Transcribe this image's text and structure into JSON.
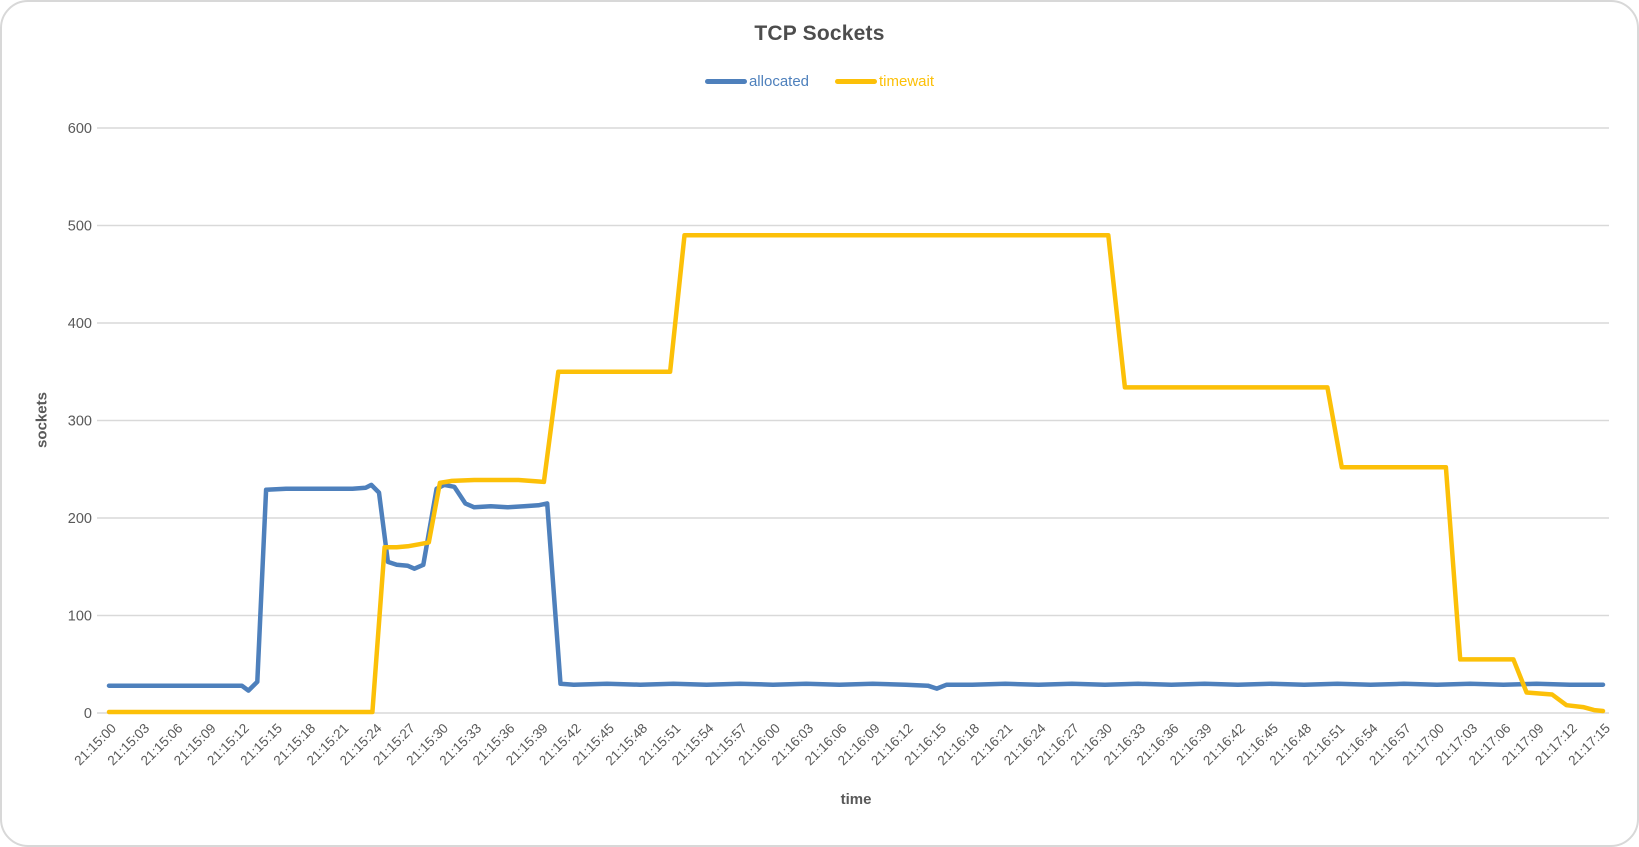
{
  "chart_data": {
    "type": "line",
    "title": "TCP Sockets",
    "xlabel": "time",
    "ylabel": "sockets",
    "ylim": [
      0,
      600
    ],
    "grid": true,
    "legend_position": "top",
    "x_unit": "seconds after 21:15:00, tick interval 3 s",
    "y_ticks": [
      600,
      500,
      400,
      300,
      200,
      100,
      0
    ],
    "x_tick_labels": [
      "21:15:00",
      "21:15:03",
      "21:15:06",
      "21:15:09",
      "21:15:12",
      "21:15:15",
      "21:15:18",
      "21:15:21",
      "21:15:24",
      "21:15:27",
      "21:15:30",
      "21:15:33",
      "21:15:36",
      "21:15:39",
      "21:15:42",
      "21:15:45",
      "21:15:48",
      "21:15:51",
      "21:15:54",
      "21:15:57",
      "21:16:00",
      "21:16:03",
      "21:16:06",
      "21:16:09",
      "21:16:12",
      "21:16:15",
      "21:16:18",
      "21:16:21",
      "21:16:24",
      "21:16:27",
      "21:16:30",
      "21:16:33",
      "21:16:36",
      "21:16:39",
      "21:16:42",
      "21:16:45",
      "21:16:48",
      "21:16:51",
      "21:16:54",
      "21:16:57",
      "21:17:00",
      "21:17:03",
      "21:17:06",
      "21:17:09",
      "21:17:12",
      "21:17:15"
    ],
    "series": [
      {
        "name": "allocated",
        "color": "#4e80bc",
        "points": [
          [
            0,
            28
          ],
          [
            3,
            28
          ],
          [
            6,
            28
          ],
          [
            9,
            28
          ],
          [
            12,
            28
          ],
          [
            12.6,
            23
          ],
          [
            13.4,
            32
          ],
          [
            14.2,
            229
          ],
          [
            16,
            230
          ],
          [
            18,
            230
          ],
          [
            20,
            230
          ],
          [
            22,
            230
          ],
          [
            23.2,
            231
          ],
          [
            23.7,
            234
          ],
          [
            24.4,
            226
          ],
          [
            25.2,
            155
          ],
          [
            26,
            152
          ],
          [
            27,
            151
          ],
          [
            27.6,
            148
          ],
          [
            28.4,
            152
          ],
          [
            29.6,
            230
          ],
          [
            30.3,
            234
          ],
          [
            31.2,
            232
          ],
          [
            32.2,
            215
          ],
          [
            33,
            211
          ],
          [
            34.5,
            212
          ],
          [
            36,
            211
          ],
          [
            37.5,
            212
          ],
          [
            38.8,
            213
          ],
          [
            39.6,
            215
          ],
          [
            40.8,
            30
          ],
          [
            42,
            29
          ],
          [
            45,
            30
          ],
          [
            48,
            29
          ],
          [
            51,
            30
          ],
          [
            54,
            29
          ],
          [
            57,
            30
          ],
          [
            60,
            29
          ],
          [
            63,
            30
          ],
          [
            66,
            29
          ],
          [
            69,
            30
          ],
          [
            72,
            29
          ],
          [
            74,
            28
          ],
          [
            74.8,
            25
          ],
          [
            75.7,
            29
          ],
          [
            78,
            29
          ],
          [
            81,
            30
          ],
          [
            84,
            29
          ],
          [
            87,
            30
          ],
          [
            90,
            29
          ],
          [
            93,
            30
          ],
          [
            96,
            29
          ],
          [
            99,
            30
          ],
          [
            102,
            29
          ],
          [
            105,
            30
          ],
          [
            108,
            29
          ],
          [
            111,
            30
          ],
          [
            114,
            29
          ],
          [
            117,
            30
          ],
          [
            120,
            29
          ],
          [
            123,
            30
          ],
          [
            126,
            29
          ],
          [
            129,
            30
          ],
          [
            132,
            29
          ],
          [
            135,
            29
          ]
        ]
      },
      {
        "name": "timewait",
        "color": "#fcc008",
        "points": [
          [
            0,
            1
          ],
          [
            3,
            1
          ],
          [
            6,
            1
          ],
          [
            9,
            1
          ],
          [
            12,
            1
          ],
          [
            15,
            1
          ],
          [
            18,
            1
          ],
          [
            21,
            1
          ],
          [
            23.8,
            1
          ],
          [
            24.9,
            170
          ],
          [
            26,
            170
          ],
          [
            27,
            171
          ],
          [
            28,
            173
          ],
          [
            28.9,
            175
          ],
          [
            29.9,
            236
          ],
          [
            31,
            238
          ],
          [
            33,
            239
          ],
          [
            35,
            239
          ],
          [
            37,
            239
          ],
          [
            39.3,
            237
          ],
          [
            40.6,
            350
          ],
          [
            43,
            350
          ],
          [
            46,
            350
          ],
          [
            49,
            350
          ],
          [
            50.7,
            350
          ],
          [
            52,
            490
          ],
          [
            56,
            490
          ],
          [
            60,
            490
          ],
          [
            65,
            490
          ],
          [
            70,
            490
          ],
          [
            75,
            490
          ],
          [
            80,
            490
          ],
          [
            85,
            490
          ],
          [
            90.3,
            490
          ],
          [
            91.8,
            334
          ],
          [
            95,
            334
          ],
          [
            100,
            334
          ],
          [
            105,
            334
          ],
          [
            110.1,
            334
          ],
          [
            111.4,
            252
          ],
          [
            114,
            252
          ],
          [
            117,
            252
          ],
          [
            120.8,
            252
          ],
          [
            122.1,
            55
          ],
          [
            124,
            55
          ],
          [
            126.9,
            55
          ],
          [
            128.1,
            21
          ],
          [
            130.4,
            19
          ],
          [
            131.7,
            8
          ],
          [
            133.2,
            6
          ],
          [
            134.2,
            3
          ],
          [
            135,
            2
          ]
        ]
      }
    ],
    "colors": {
      "gridline": "#d9d9d9",
      "tick_text": "#595959",
      "title_text": "#4d4d4d",
      "card_border": "#d8d8d8"
    }
  }
}
